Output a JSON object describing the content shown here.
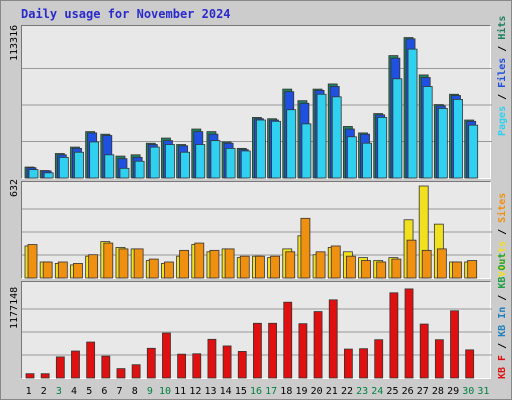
{
  "title": "Daily usage for November 2024",
  "colors": {
    "pages": "#30d0f0",
    "files": "#2050e0",
    "hits": "#208060",
    "visits": "#f0e020",
    "sites": "#f09010",
    "kb_in": "#2080c0",
    "kb_out": "#20a040",
    "kb_f": "#e01010",
    "weekday": "#000000",
    "weekend": "#008040"
  },
  "chart_data": [
    {
      "type": "bar",
      "ylabel_max": "113316",
      "ylim": [
        0,
        113316
      ],
      "legend": [
        {
          "text": "Pages",
          "color_key": "pages"
        },
        {
          "text": "Files",
          "color_key": "files"
        },
        {
          "text": "Hits",
          "color_key": "hits"
        }
      ],
      "categories": [
        "1",
        "2",
        "3",
        "4",
        "5",
        "6",
        "7",
        "8",
        "9",
        "10",
        "11",
        "12",
        "13",
        "14",
        "15",
        "16",
        "17",
        "18",
        "19",
        "20",
        "21",
        "22",
        "23",
        "24",
        "25",
        "26",
        "27",
        "28",
        "29",
        "30",
        "31"
      ],
      "series": [
        {
          "name": "Hits",
          "color_key": "hits",
          "values": [
            8500,
            5800,
            19000,
            24000,
            36000,
            34000,
            17000,
            18000,
            27000,
            31000,
            26000,
            38000,
            36000,
            28000,
            23000,
            47000,
            46000,
            69000,
            60000,
            69000,
            73000,
            40000,
            35000,
            50000,
            95000,
            109000,
            80000,
            57000,
            65000,
            45000,
            0
          ]
        },
        {
          "name": "Files",
          "color_key": "files",
          "values": [
            8000,
            5500,
            18000,
            23000,
            35000,
            33000,
            15000,
            16000,
            26000,
            29000,
            25000,
            36000,
            34000,
            27000,
            22000,
            46000,
            45000,
            67000,
            58000,
            68000,
            71000,
            38000,
            34000,
            49000,
            93000,
            108000,
            78000,
            56000,
            64000,
            44000,
            0
          ]
        },
        {
          "name": "Pages",
          "color_key": "pages",
          "values": [
            6500,
            4000,
            16000,
            20000,
            28000,
            18000,
            7500,
            13000,
            24000,
            26000,
            20000,
            26000,
            29000,
            23000,
            21000,
            45000,
            44000,
            53000,
            42000,
            65000,
            63000,
            32000,
            27000,
            47000,
            77000,
            100000,
            71000,
            54000,
            61000,
            41000,
            0
          ]
        }
      ]
    },
    {
      "type": "bar",
      "ylabel_max": "632",
      "ylim": [
        0,
        632
      ],
      "legend": [
        {
          "text": "Visits",
          "color_key": "visits"
        },
        {
          "text": "Sites",
          "color_key": "sites"
        }
      ],
      "categories": [
        "1",
        "2",
        "3",
        "4",
        "5",
        "6",
        "7",
        "8",
        "9",
        "10",
        "11",
        "12",
        "13",
        "14",
        "15",
        "16",
        "17",
        "18",
        "19",
        "20",
        "21",
        "22",
        "23",
        "24",
        "25",
        "26",
        "27",
        "28",
        "29",
        "30",
        "31"
      ],
      "series": [
        {
          "name": "Visits",
          "color_key": "visits",
          "values": [
            220,
            110,
            100,
            90,
            150,
            250,
            210,
            200,
            120,
            100,
            150,
            230,
            180,
            200,
            140,
            150,
            140,
            200,
            290,
            160,
            210,
            180,
            140,
            120,
            140,
            400,
            632,
            370,
            110,
            110,
            0
          ]
        },
        {
          "name": "Sites",
          "color_key": "sites",
          "values": [
            230,
            110,
            110,
            100,
            160,
            240,
            200,
            200,
            130,
            110,
            190,
            240,
            190,
            200,
            150,
            150,
            150,
            180,
            410,
            180,
            220,
            150,
            120,
            110,
            130,
            260,
            190,
            200,
            110,
            120,
            0
          ]
        }
      ]
    },
    {
      "type": "bar",
      "ylabel_max": "1177148",
      "ylim": [
        0,
        1177148
      ],
      "legend": [
        {
          "text": "KB F",
          "color_key": "kb_f"
        },
        {
          "text": "KB In",
          "color_key": "kb_in"
        },
        {
          "text": "KB Out",
          "color_key": "kb_out"
        }
      ],
      "categories": [
        "1",
        "2",
        "3",
        "4",
        "5",
        "6",
        "7",
        "8",
        "9",
        "10",
        "11",
        "12",
        "13",
        "14",
        "15",
        "16",
        "17",
        "18",
        "19",
        "20",
        "21",
        "22",
        "23",
        "24",
        "25",
        "26",
        "27",
        "28",
        "29",
        "30",
        "31"
      ],
      "series": [
        {
          "name": "KB F",
          "color_key": "kb_f",
          "values": [
            55000,
            55000,
            270000,
            345000,
            460000,
            280000,
            120000,
            170000,
            380000,
            575000,
            305000,
            310000,
            495000,
            410000,
            340000,
            700000,
            700000,
            970000,
            695000,
            850000,
            1000000,
            370000,
            375000,
            490000,
            1090000,
            1140000,
            690000,
            490000,
            860000,
            360000,
            0
          ]
        }
      ]
    }
  ],
  "x_labels": [
    {
      "text": "1",
      "weekend": false
    },
    {
      "text": "2",
      "weekend": false
    },
    {
      "text": "3",
      "weekend": true
    },
    {
      "text": "4",
      "weekend": false
    },
    {
      "text": "5",
      "weekend": false
    },
    {
      "text": "6",
      "weekend": false
    },
    {
      "text": "7",
      "weekend": false
    },
    {
      "text": "8",
      "weekend": false
    },
    {
      "text": "9",
      "weekend": true
    },
    {
      "text": "10",
      "weekend": true
    },
    {
      "text": "11",
      "weekend": false
    },
    {
      "text": "12",
      "weekend": false
    },
    {
      "text": "13",
      "weekend": false
    },
    {
      "text": "14",
      "weekend": false
    },
    {
      "text": "15",
      "weekend": false
    },
    {
      "text": "16",
      "weekend": true
    },
    {
      "text": "17",
      "weekend": true
    },
    {
      "text": "18",
      "weekend": false
    },
    {
      "text": "19",
      "weekend": false
    },
    {
      "text": "20",
      "weekend": false
    },
    {
      "text": "21",
      "weekend": false
    },
    {
      "text": "22",
      "weekend": false
    },
    {
      "text": "23",
      "weekend": true
    },
    {
      "text": "24",
      "weekend": true
    },
    {
      "text": "25",
      "weekend": false
    },
    {
      "text": "26",
      "weekend": false
    },
    {
      "text": "27",
      "weekend": false
    },
    {
      "text": "28",
      "weekend": false
    },
    {
      "text": "29",
      "weekend": false
    },
    {
      "text": "30",
      "weekend": true
    },
    {
      "text": "31",
      "weekend": true
    }
  ]
}
